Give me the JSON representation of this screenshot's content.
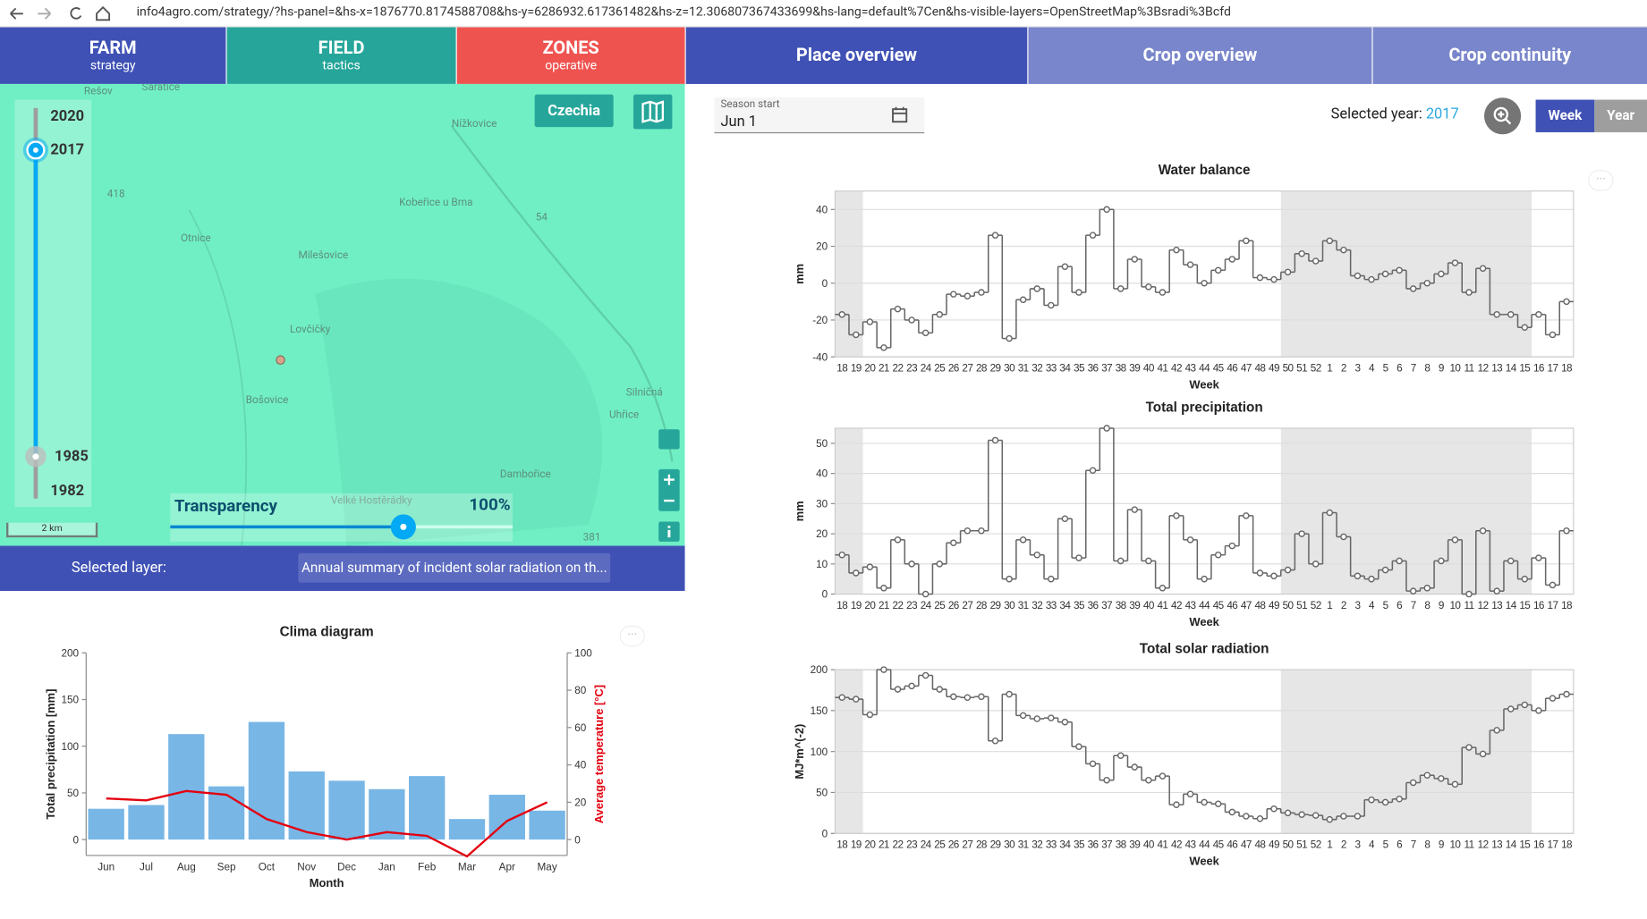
{
  "browser": {
    "url": "info4agro.com/strategy/?hs-panel=&hs-x=1876770.8174588708&hs-y=6286932.617361482&hs-z=12.306807367433699&hs-lang=default%7Cen&hs-visible-layers=OpenStreetMap%3Bsradi%3Bcfd"
  },
  "nav": {
    "tabs": [
      {
        "title": "FARM",
        "subtitle": "strategy"
      },
      {
        "title": "FIELD",
        "subtitle": "tactics"
      },
      {
        "title": "ZONES",
        "subtitle": "operative"
      }
    ],
    "views": [
      "Place overview",
      "Crop overview",
      "Crop continuity"
    ]
  },
  "map": {
    "country": "Czechia",
    "years": [
      2020,
      2017,
      1985,
      1982
    ],
    "scale": "2 km",
    "transparency_label": "Transparency",
    "transparency_value": "100%",
    "places": [
      "Rešov",
      "Saratice",
      "Nížkovice",
      "Otnice",
      "Milešovice",
      "Kobeřice u Brna",
      "Lovčičky",
      "Bošovice",
      "Silničná",
      "Uhřice",
      "Dambořice",
      "Velké Hostěrádky",
      "418",
      "54",
      "381"
    ],
    "selected_layer_label": "Selected layer:",
    "selected_layer": "Annual summary of incident solar radiation on th..."
  },
  "controls": {
    "season_start_label": "Season start",
    "season_start": "Jun 1",
    "selected_year_label": "Selected year:",
    "selected_year": 2017,
    "buttons": [
      "Week",
      "Year"
    ]
  },
  "chart_data": [
    {
      "type": "bar",
      "title": "Clima diagram",
      "x_label": "Month",
      "y_label": "Total precipitation [mm]",
      "y2_label": "Average temperature [°C]",
      "categories": [
        "Jun",
        "Jul",
        "Aug",
        "Sep",
        "Oct",
        "Nov",
        "Dec",
        "Jan",
        "Feb",
        "Mar",
        "Apr",
        "May"
      ],
      "series": [
        {
          "type": "bar",
          "color": "#78b6e6",
          "values": [
            33,
            37,
            113,
            57,
            126,
            73,
            63,
            54,
            68,
            22,
            48,
            31
          ]
        },
        {
          "type": "line",
          "axis": "y2",
          "color": "#e3000f",
          "values": [
            22,
            21,
            26,
            24,
            11,
            4,
            0,
            4,
            2,
            -9,
            10,
            20
          ]
        }
      ],
      "ylim": [
        -17,
        200
      ],
      "yticks": [
        0,
        50,
        100,
        150,
        200
      ],
      "y2lim": [
        -8.5,
        100
      ],
      "y2ticks": [
        0,
        20,
        40,
        60,
        80,
        100
      ],
      "grid": false
    },
    {
      "type": "line",
      "step": true,
      "title": "Water balance",
      "x_label": "Week",
      "y_label": "mm",
      "color": "#666666",
      "categories": [
        18,
        19,
        20,
        21,
        22,
        23,
        24,
        25,
        26,
        27,
        28,
        29,
        30,
        31,
        32,
        33,
        34,
        35,
        36,
        37,
        38,
        39,
        40,
        41,
        42,
        43,
        44,
        45,
        46,
        47,
        48,
        49,
        50,
        51,
        52,
        1,
        2,
        3,
        4,
        5,
        6,
        7,
        8,
        9,
        10,
        11,
        12,
        13,
        14,
        15,
        16,
        17,
        18
      ],
      "values": [
        -17,
        -28,
        -21,
        -35,
        -14,
        -20,
        -27,
        -17,
        -6,
        -7,
        -5,
        26,
        -30,
        -9,
        -3,
        -12,
        9,
        -5,
        26,
        40,
        -3,
        13,
        -2,
        -5,
        18,
        10,
        0,
        7,
        13,
        23,
        3,
        2,
        6,
        16,
        12,
        23,
        18,
        4,
        2,
        5,
        7,
        -3,
        0,
        5,
        11,
        -5,
        8,
        -17,
        -17,
        -24,
        -17,
        -28,
        -10
      ],
      "ylim": [
        -40,
        50
      ],
      "yticks": [
        -40,
        -20,
        0,
        20,
        40
      ],
      "grid": true
    },
    {
      "type": "line",
      "step": true,
      "title": "Total precipitation",
      "x_label": "Week",
      "y_label": "mm",
      "color": "#666666",
      "categories": [
        18,
        19,
        20,
        21,
        22,
        23,
        24,
        25,
        26,
        27,
        28,
        29,
        30,
        31,
        32,
        33,
        34,
        35,
        36,
        37,
        38,
        39,
        40,
        41,
        42,
        43,
        44,
        45,
        46,
        47,
        48,
        49,
        50,
        51,
        52,
        1,
        2,
        3,
        4,
        5,
        6,
        7,
        8,
        9,
        10,
        11,
        12,
        13,
        14,
        15,
        16,
        17,
        18
      ],
      "values": [
        13,
        7,
        9,
        2,
        18,
        10,
        0,
        10,
        17,
        21,
        21,
        51,
        5,
        18,
        13,
        5,
        25,
        12,
        41,
        55,
        11,
        28,
        11,
        2,
        26,
        18,
        5,
        13,
        16,
        26,
        7,
        6,
        8,
        20,
        10,
        27,
        19,
        6,
        5,
        8,
        11,
        1,
        2,
        11,
        18,
        0,
        21,
        1,
        11,
        5,
        12,
        3,
        21
      ],
      "ylim": [
        0,
        55
      ],
      "yticks": [
        0,
        10,
        20,
        30,
        40,
        50
      ],
      "grid": true
    },
    {
      "type": "line",
      "step": true,
      "title": "Total solar radiation",
      "x_label": "Week",
      "y_label": "MJ*m^(-2)",
      "color": "#666666",
      "categories": [
        18,
        19,
        20,
        21,
        22,
        23,
        24,
        25,
        26,
        27,
        28,
        29,
        30,
        31,
        32,
        33,
        34,
        35,
        36,
        37,
        38,
        39,
        40,
        41,
        42,
        43,
        44,
        45,
        46,
        47,
        48,
        49,
        50,
        51,
        52,
        1,
        2,
        3,
        4,
        5,
        6,
        7,
        8,
        9,
        10,
        11,
        12,
        13,
        14,
        15,
        16,
        17,
        18
      ],
      "values": [
        166,
        164,
        145,
        200,
        176,
        180,
        193,
        176,
        167,
        166,
        167,
        113,
        170,
        144,
        140,
        141,
        136,
        106,
        85,
        65,
        95,
        81,
        65,
        70,
        35,
        48,
        38,
        36,
        26,
        21,
        18,
        30,
        25,
        23,
        22,
        17,
        21,
        21,
        41,
        38,
        42,
        62,
        71,
        67,
        60,
        105,
        97,
        126,
        152,
        157,
        150,
        165,
        170
      ],
      "ylim": [
        0,
        200
      ],
      "yticks": [
        0,
        50,
        100,
        150,
        200
      ],
      "grid": true
    }
  ]
}
